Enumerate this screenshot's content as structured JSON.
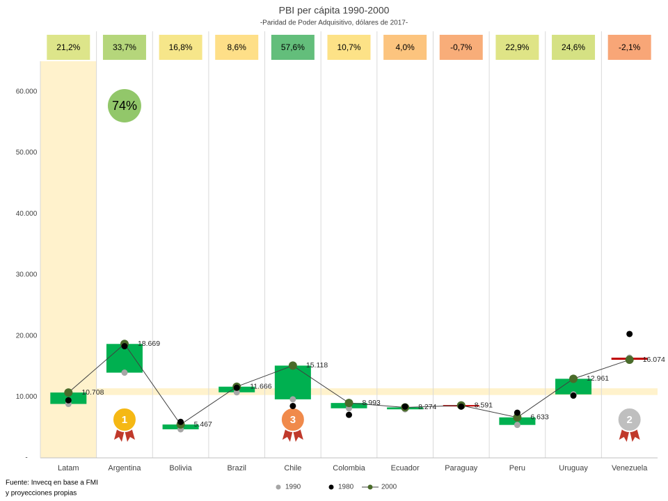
{
  "chart_data": {
    "type": "floating-box-line",
    "title": "PBI per cápita 1990-2000",
    "subtitle": "-Paridad de Poder Adquisitivo, dólares de 2017-",
    "categories": [
      "Latam",
      "Argentina",
      "Bolivia",
      "Brazil",
      "Chile",
      "Colombia",
      "Ecuador",
      "Paraguay",
      "Peru",
      "Uruguay",
      "Venezuela"
    ],
    "series": [
      {
        "name": "1990",
        "color": "#a6a6a6",
        "values": [
          8835,
          13963,
          4681,
          10742,
          9593,
          8124,
          7956,
          8652,
          5397,
          10402,
          16419
        ]
      },
      {
        "name": "1980",
        "color": "#000000",
        "values": [
          9430,
          18300,
          5900,
          11500,
          8500,
          7050,
          8400,
          8400,
          7400,
          10200,
          20300
        ]
      },
      {
        "name": "2000",
        "color": "#4a6b2a",
        "values": [
          10708,
          18669,
          5467,
          11666,
          15118,
          8993,
          8274,
          8591,
          6633,
          12961,
          16074
        ],
        "value_labels": [
          "10.708",
          "18.669",
          "5.467",
          "11.666",
          "15.118",
          "8.993",
          "8.274",
          "8.591",
          "6.633",
          "12.961",
          "16.074"
        ]
      }
    ],
    "growth": {
      "values": [
        21.2,
        33.7,
        16.8,
        8.6,
        57.6,
        10.7,
        4.0,
        -0.7,
        22.9,
        24.6,
        -2.1
      ],
      "value_labels": [
        "21,2%",
        "33,7%",
        "16,8%",
        "8,6%",
        "57,6%",
        "10,7%",
        "4,0%",
        "-0,7%",
        "22,9%",
        "24,6%",
        "-2,1%"
      ],
      "colors": [
        "#dde58a",
        "#b5d67b",
        "#f6e68a",
        "#fedf88",
        "#63be7b",
        "#fde287",
        "#fcc47e",
        "#f8ad79",
        "#dfe486",
        "#d5e183",
        "#f8a677"
      ]
    },
    "box_colors": {
      "up": "#00b050",
      "down": "#c00000"
    },
    "reference_band": [
      10300,
      11400
    ],
    "annotation": {
      "value": 74,
      "label": "74%"
    },
    "medals": [
      null,
      "1",
      null,
      null,
      "3",
      null,
      null,
      null,
      null,
      null,
      "2"
    ],
    "ylim": [
      0,
      65000
    ],
    "yticks": [
      {
        "value": 0,
        "label": "-"
      },
      {
        "value": 10000,
        "label": "10.000"
      },
      {
        "value": 20000,
        "label": "20.000"
      },
      {
        "value": 30000,
        "label": "30.000"
      },
      {
        "value": 40000,
        "label": "40.000"
      },
      {
        "value": 50000,
        "label": "50.000"
      },
      {
        "value": 60000,
        "label": "60.000"
      }
    ],
    "source": [
      "Fuente: Invecq en base a FMI",
      "y proyecciones propias"
    ]
  }
}
